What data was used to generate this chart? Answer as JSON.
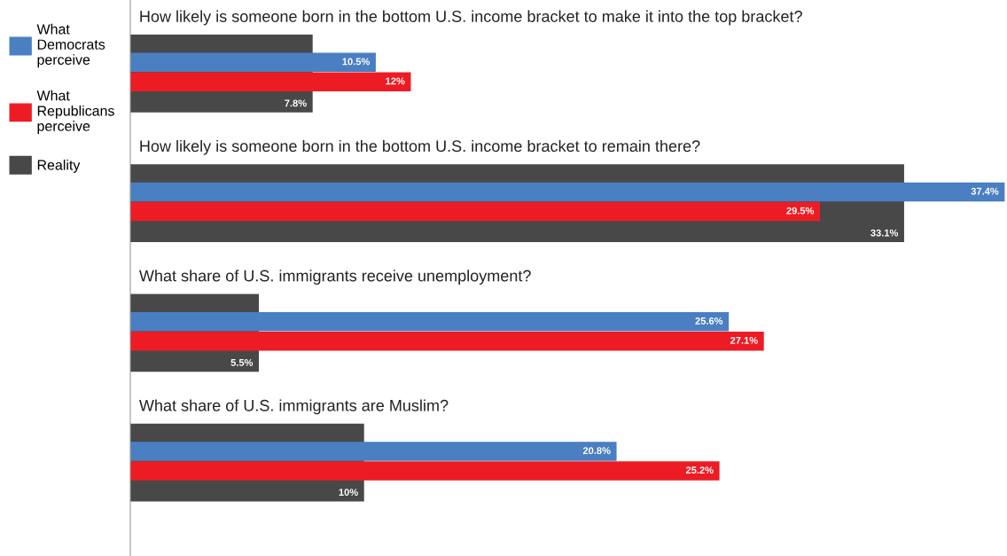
{
  "chart_data": {
    "type": "bar",
    "orientation": "horizontal",
    "categories": [
      "How likely is someone born in the bottom U.S. income bracket to make it into the top bracket?",
      "How likely is someone born in the bottom U.S. income bracket to remain there?",
      "What share of U.S. immigrants receive unemployment?",
      "What share of U.S. immigrants are Muslim?"
    ],
    "series": [
      {
        "name": "What\nDemocrats\nperceive",
        "color": "#4a7fc1",
        "values": [
          10.5,
          37.4,
          25.6,
          20.8
        ],
        "value_labels": [
          "10.5%",
          "37.4%",
          "25.6%",
          "20.8%"
        ]
      },
      {
        "name": "What\nRepublicans\nperceive",
        "color": "#ed1c24",
        "values": [
          12,
          29.5,
          27.1,
          25.2
        ],
        "value_labels": [
          "12%",
          "29.5%",
          "27.1%",
          "25.2%"
        ]
      },
      {
        "name": "Reality",
        "color": "#484848",
        "values": [
          7.8,
          33.1,
          5.5,
          10
        ],
        "value_labels": [
          "7.8%",
          "33.1%",
          "5.5%",
          "10%"
        ]
      }
    ],
    "xlim": [
      0,
      37.5
    ],
    "legend": "left"
  }
}
